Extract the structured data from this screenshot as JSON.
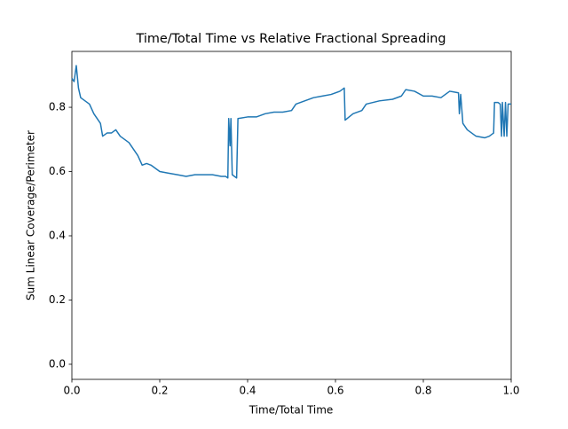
{
  "chart_data": {
    "type": "line",
    "title": "Time/Total Time vs Relative Fractional Spreading",
    "x_label": "Time/Total Time",
    "y_label": "Sum Linear Coverage/Perimeter",
    "xlim": [
      0,
      1
    ],
    "ylim": [
      -0.047,
      0.974
    ],
    "xticks": [
      {
        "value": 0,
        "label": "0.0"
      },
      {
        "value": 0.2,
        "label": "0.2"
      },
      {
        "value": 0.4,
        "label": "0.4"
      },
      {
        "value": 0.6,
        "label": "0.6"
      },
      {
        "value": 0.8,
        "label": "0.8"
      },
      {
        "value": 1,
        "label": "1.0"
      }
    ],
    "yticks": [
      {
        "value": 0,
        "label": "0.0"
      },
      {
        "value": 0.2,
        "label": "0.2"
      },
      {
        "value": 0.4,
        "label": "0.4"
      },
      {
        "value": 0.6,
        "label": "0.6"
      },
      {
        "value": 0.8,
        "label": "0.8"
      }
    ],
    "grid": false,
    "series": [
      {
        "color": "#1f77b4",
        "x": [
          0,
          0.005,
          0.01,
          0.015,
          0.02,
          0.03,
          0.04,
          0.05,
          0.06,
          0.065,
          0.07,
          0.08,
          0.09,
          0.1,
          0.11,
          0.12,
          0.13,
          0.14,
          0.15,
          0.16,
          0.17,
          0.18,
          0.19,
          0.2,
          0.22,
          0.24,
          0.26,
          0.28,
          0.3,
          0.32,
          0.34,
          0.35,
          0.355,
          0.357,
          0.36,
          0.362,
          0.365,
          0.37,
          0.375,
          0.378,
          0.4,
          0.42,
          0.44,
          0.46,
          0.48,
          0.5,
          0.51,
          0.53,
          0.55,
          0.57,
          0.59,
          0.61,
          0.62,
          0.622,
          0.64,
          0.66,
          0.67,
          0.7,
          0.73,
          0.75,
          0.76,
          0.78,
          0.8,
          0.82,
          0.84,
          0.86,
          0.88,
          0.882,
          0.885,
          0.89,
          0.9,
          0.92,
          0.94,
          0.95,
          0.96,
          0.962,
          0.97,
          0.975,
          0.978,
          0.98,
          0.984,
          0.987,
          0.99,
          0.993,
          1
        ],
        "values": [
          0.89,
          0.88,
          0.93,
          0.86,
          0.83,
          0.82,
          0.81,
          0.78,
          0.76,
          0.75,
          0.71,
          0.72,
          0.72,
          0.73,
          0.71,
          0.7,
          0.69,
          0.67,
          0.65,
          0.62,
          0.625,
          0.62,
          0.61,
          0.6,
          0.595,
          0.59,
          0.585,
          0.59,
          0.59,
          0.59,
          0.585,
          0.585,
          0.58,
          0.765,
          0.68,
          0.765,
          0.59,
          0.585,
          0.58,
          0.765,
          0.77,
          0.77,
          0.78,
          0.785,
          0.785,
          0.79,
          0.81,
          0.82,
          0.83,
          0.835,
          0.84,
          0.85,
          0.86,
          0.76,
          0.78,
          0.79,
          0.81,
          0.82,
          0.825,
          0.835,
          0.855,
          0.85,
          0.835,
          0.835,
          0.83,
          0.85,
          0.845,
          0.78,
          0.84,
          0.75,
          0.73,
          0.71,
          0.705,
          0.71,
          0.72,
          0.815,
          0.815,
          0.81,
          0.71,
          0.815,
          0.71,
          0.815,
          0.71,
          0.81,
          0.81
        ]
      }
    ]
  }
}
